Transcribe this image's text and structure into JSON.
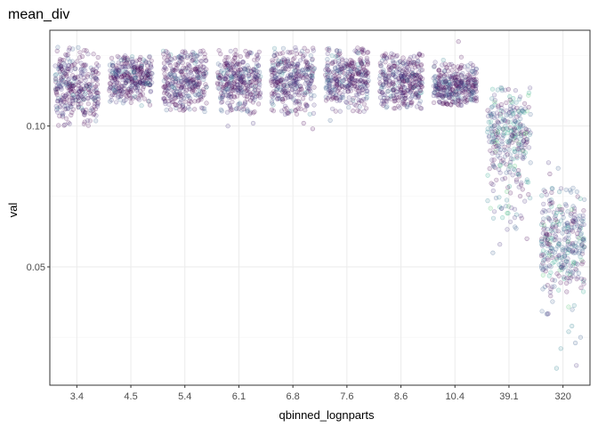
{
  "chart_data": {
    "type": "scatter",
    "title": "mean_div",
    "xlabel": "qbinned_lognparts",
    "ylabel": "val",
    "categories": [
      "3.4",
      "4.5",
      "5.4",
      "6.1",
      "6.8",
      "7.6",
      "8.6",
      "10.4",
      "39.1",
      "320"
    ],
    "ylim": [
      0.008,
      0.134
    ],
    "y_ticks": [
      0.05,
      0.1
    ],
    "y_tick_labels": [
      "0.05",
      "0.10"
    ],
    "grid": true,
    "jitter": true,
    "groups": [
      {
        "category": "3.4",
        "center": 0.114,
        "low": 0.1,
        "high": 0.128,
        "outliers": []
      },
      {
        "category": "4.5",
        "center": 0.117,
        "low": 0.107,
        "high": 0.125,
        "outliers": []
      },
      {
        "category": "5.4",
        "center": 0.116,
        "low": 0.105,
        "high": 0.127,
        "outliers": []
      },
      {
        "category": "6.1",
        "center": 0.116,
        "low": 0.104,
        "high": 0.127,
        "outliers": [
          0.1,
          0.101
        ]
      },
      {
        "category": "6.8",
        "center": 0.116,
        "low": 0.104,
        "high": 0.128,
        "outliers": [
          0.099,
          0.101
        ]
      },
      {
        "category": "7.6",
        "center": 0.117,
        "low": 0.105,
        "high": 0.128,
        "outliers": [
          0.102
        ]
      },
      {
        "category": "8.6",
        "center": 0.116,
        "low": 0.106,
        "high": 0.126,
        "outliers": []
      },
      {
        "category": "10.4",
        "center": 0.114,
        "low": 0.107,
        "high": 0.126,
        "outliers": [
          0.13
        ]
      },
      {
        "category": "39.1",
        "center": 0.1,
        "low": 0.063,
        "high": 0.114,
        "outliers": [
          0.055,
          0.058,
          0.06
        ]
      },
      {
        "category": "320",
        "center": 0.058,
        "low": 0.033,
        "high": 0.078,
        "outliers": [
          0.014,
          0.015,
          0.021,
          0.023,
          0.025,
          0.027,
          0.029,
          0.083,
          0.085,
          0.087
        ]
      }
    ],
    "colors": {
      "panel_background": "#ffffff",
      "panel_border": "#333333",
      "grid_major": "#ebebeb",
      "grid_minor": "#f5f5f5",
      "palette": [
        "#440154",
        "#46327e",
        "#365c8d",
        "#277f8e",
        "#1fa187",
        "#4ac16d",
        "#a0da39",
        "#fde725"
      ]
    }
  }
}
